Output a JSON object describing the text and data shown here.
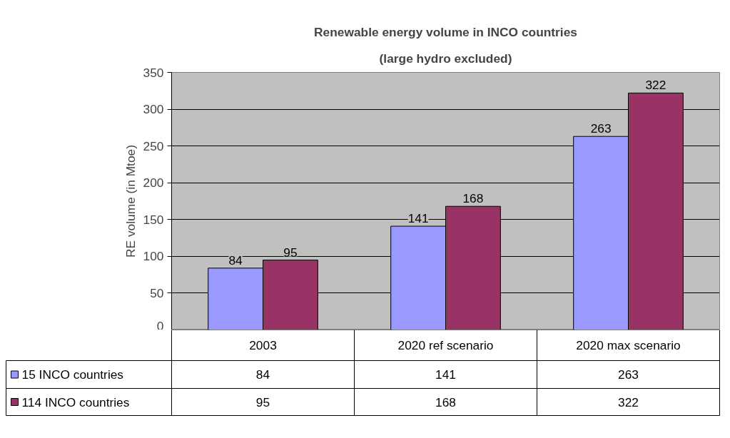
{
  "chart_data": {
    "type": "bar",
    "title": "Renewable energy volume in INCO countries",
    "subtitle": "(large hydro excluded)",
    "ylabel": "RE volume (in Mtoe)",
    "categories": [
      "2003",
      "2020 ref scenario",
      "2020 max scenario"
    ],
    "series": [
      {
        "name": "15 INCO countries",
        "color": "#9999ff",
        "values": [
          84,
          141,
          263
        ],
        "value_labels": [
          "84",
          "141",
          "263"
        ]
      },
      {
        "name": "114 INCO countries",
        "color": "#993366",
        "values": [
          95,
          168,
          322
        ],
        "value_labels": [
          "95",
          "168",
          "322"
        ]
      }
    ],
    "ylim": [
      0,
      350
    ],
    "yticks": [
      0,
      50,
      100,
      150,
      200,
      250,
      300,
      350
    ],
    "grid": "y",
    "annotations": [
      "84",
      "141",
      "263",
      "95",
      "168",
      "322"
    ],
    "legend": "bottom left"
  }
}
